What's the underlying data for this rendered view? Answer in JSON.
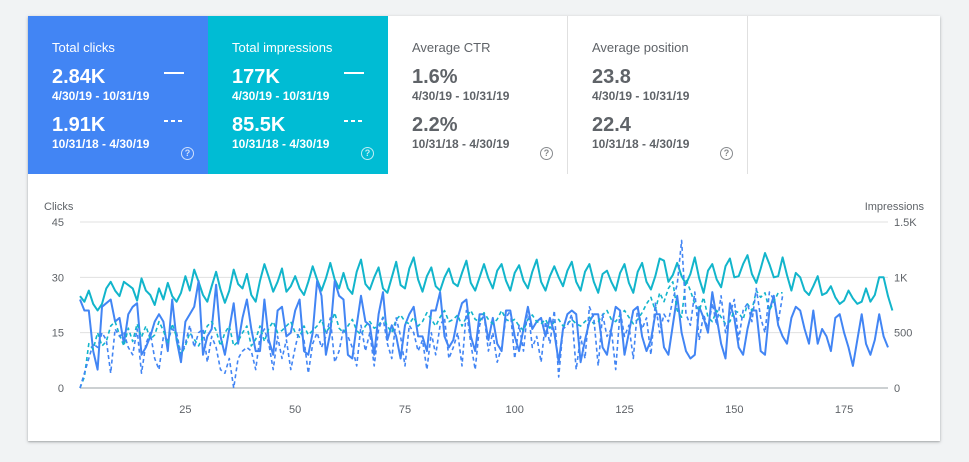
{
  "metrics": [
    {
      "title": "Total clicks",
      "current_value": "2.84K",
      "current_range": "4/30/19 - 10/31/19",
      "previous_value": "1.91K",
      "previous_range": "10/31/18 - 4/30/19",
      "bg": "#4285f4",
      "active": true
    },
    {
      "title": "Total impressions",
      "current_value": "177K",
      "current_range": "4/30/19 - 10/31/19",
      "previous_value": "85.5K",
      "previous_range": "10/31/18 - 4/30/19",
      "bg": "#00bcd4",
      "active": true
    },
    {
      "title": "Average CTR",
      "current_value": "1.6%",
      "current_range": "4/30/19 - 10/31/19",
      "previous_value": "2.2%",
      "previous_range": "10/31/18 - 4/30/19",
      "bg": "#ffffff",
      "active": false
    },
    {
      "title": "Average position",
      "current_value": "23.8",
      "current_range": "4/30/19 - 10/31/19",
      "previous_value": "22.4",
      "previous_range": "10/31/18 - 4/30/19",
      "bg": "#ffffff",
      "active": false
    }
  ],
  "help_glyph": "?",
  "chart_data": {
    "type": "line",
    "ylabel_left": "Clicks",
    "ylabel_right": "Impressions",
    "ylim_left": [
      0,
      45
    ],
    "ylim_right": [
      0,
      1500
    ],
    "yticks_left": [
      "0",
      "15",
      "30",
      "45"
    ],
    "yticks_right": [
      "0",
      "500",
      "1K",
      "1.5K"
    ],
    "xlim": [
      1,
      185
    ],
    "xticks": [
      25,
      50,
      75,
      100,
      125,
      150,
      175
    ],
    "grid": true,
    "series": [
      {
        "axis": "left",
        "style": "solid",
        "color": "#4285f4",
        "values": [
          24,
          21,
          21,
          10,
          5,
          22,
          23,
          24,
          18,
          19,
          12,
          20,
          22,
          23,
          9,
          11,
          14,
          18,
          20,
          18,
          10,
          24,
          13,
          7,
          18,
          20,
          22,
          29,
          9,
          14,
          16,
          28,
          14,
          9,
          16,
          23,
          12,
          19,
          24,
          16,
          10,
          10,
          24,
          13,
          9,
          21,
          22,
          14,
          15,
          21,
          24,
          10,
          9,
          15,
          29,
          25,
          9,
          15,
          29,
          25,
          24,
          9,
          8,
          17,
          25,
          18,
          17,
          9,
          20,
          26,
          13,
          17,
          14,
          8,
          17,
          20,
          22,
          14,
          14,
          10,
          21,
          21,
          26,
          14,
          11,
          13,
          19,
          23,
          24,
          14,
          10,
          20,
          20,
          13,
          19,
          12,
          10,
          21,
          21,
          14,
          10,
          16,
          22,
          16,
          18,
          19,
          14,
          19,
          15,
          7,
          16,
          20,
          21,
          20,
          7,
          13,
          18,
          20,
          20,
          11,
          9,
          16,
          22,
          21,
          9,
          15,
          21,
          22,
          14,
          10,
          13,
          20,
          20,
          11,
          9,
          17,
          25,
          15,
          10,
          8,
          9,
          22,
          19,
          15,
          26,
          19,
          12,
          8,
          23,
          19,
          11,
          9,
          16,
          21,
          21,
          10,
          9,
          21,
          25,
          17,
          14,
          12,
          19,
          22,
          21,
          16,
          12,
          21,
          12,
          16,
          14,
          10,
          19,
          20,
          15,
          11,
          6,
          13,
          20,
          12,
          9,
          13,
          20,
          14,
          11
        ]
      },
      {
        "axis": "right",
        "style": "solid",
        "color": "#12b5cb",
        "values": [
          830,
          780,
          880,
          760,
          700,
          760,
          900,
          960,
          880,
          830,
          960,
          930,
          900,
          790,
          990,
          880,
          840,
          750,
          900,
          800,
          950,
          830,
          780,
          860,
          1010,
          880,
          1070,
          960,
          840,
          780,
          920,
          1050,
          890,
          770,
          880,
          1070,
          940,
          900,
          1030,
          840,
          780,
          970,
          1120,
          1000,
          870,
          960,
          1080,
          870,
          920,
          1010,
          900,
          840,
          960,
          1100,
          980,
          880,
          990,
          1130,
          980,
          900,
          1040,
          900,
          850,
          1050,
          1160,
          940,
          890,
          1000,
          1090,
          900,
          860,
          1000,
          1140,
          930,
          900,
          1080,
          1180,
          980,
          870,
          1010,
          1090,
          920,
          880,
          1000,
          1080,
          950,
          920,
          1040,
          1150,
          950,
          880,
          1000,
          1120,
          990,
          900,
          1060,
          1120,
          970,
          880,
          1040,
          1110,
          970,
          900,
          1050,
          1160,
          960,
          880,
          1010,
          1100,
          1000,
          920,
          1060,
          1140,
          960,
          880,
          1050,
          1120,
          960,
          860,
          1030,
          1060,
          960,
          880,
          1040,
          1120,
          950,
          860,
          1050,
          1130,
          960,
          890,
          1010,
          1170,
          1150,
          960,
          1020,
          1130,
          1010,
          940,
          1030,
          1180,
          990,
          860,
          1060,
          1120,
          980,
          910,
          1100,
          1170,
          1000,
          1010,
          1120,
          1200,
          1030,
          950,
          1080,
          1220,
          1120,
          1000,
          1010,
          1180,
          1020,
          880,
          1040,
          1000,
          880,
          840,
          920,
          1010,
          840,
          860,
          920,
          820,
          760,
          790,
          880,
          810,
          760,
          780,
          900,
          780,
          840,
          1000,
          1000,
          830,
          700
        ]
      },
      {
        "axis": "left",
        "style": "dashed",
        "color": "#4285f4",
        "values": [
          0,
          4,
          8,
          12,
          11,
          15,
          13,
          4,
          16,
          14,
          15,
          11,
          9,
          16,
          4,
          12,
          15,
          8,
          5,
          14,
          13,
          16,
          15,
          9,
          12,
          17,
          11,
          15,
          16,
          7,
          14,
          11,
          5,
          4,
          8,
          0,
          8,
          10,
          11,
          10,
          5,
          14,
          16,
          12,
          5,
          14,
          8,
          13,
          5,
          11,
          16,
          13,
          4,
          12,
          15,
          11,
          14,
          19,
          7,
          10,
          16,
          14,
          11,
          6,
          17,
          10,
          15,
          6,
          16,
          19,
          12,
          8,
          19,
          14,
          6,
          17,
          15,
          10,
          13,
          5,
          15,
          9,
          17,
          19,
          8,
          11,
          15,
          6,
          21,
          12,
          5,
          17,
          20,
          10,
          15,
          7,
          11,
          19,
          21,
          8,
          17,
          10,
          22,
          11,
          14,
          7,
          18,
          12,
          21,
          3,
          16,
          17,
          20,
          5,
          14,
          8,
          22,
          19,
          6,
          20,
          14,
          16,
          5,
          21,
          14,
          17,
          8,
          22,
          16,
          19,
          9,
          23,
          15,
          20,
          18,
          24,
          28,
          40,
          20,
          17,
          26,
          13,
          20,
          16,
          23,
          17,
          25,
          15,
          20,
          24,
          13,
          21,
          23,
          18,
          27,
          19,
          15,
          26,
          24,
          18,
          25
        ]
      },
      {
        "axis": "right",
        "style": "dashed",
        "color": "#12b5cb",
        "values": [
          0,
          100,
          400,
          350,
          500,
          380,
          420,
          560,
          600,
          480,
          380,
          540,
          420,
          580,
          460,
          560,
          440,
          480,
          600,
          520,
          400,
          580,
          460,
          300,
          380,
          500,
          440,
          380,
          460,
          560,
          600,
          520,
          380,
          500,
          560,
          380,
          420,
          500,
          560,
          380,
          440,
          560,
          420,
          540,
          600,
          500,
          520,
          560,
          600,
          500,
          460,
          560,
          480,
          520,
          560,
          620,
          500,
          560,
          680,
          540,
          500,
          560,
          620,
          520,
          480,
          560,
          600,
          540,
          560,
          640,
          560,
          500,
          620,
          660,
          600,
          580,
          640,
          560,
          600,
          680,
          620,
          560,
          640,
          700,
          600,
          620,
          660,
          560,
          640,
          700,
          620,
          600,
          680,
          620,
          580,
          620,
          700,
          620,
          600,
          620,
          560,
          520,
          620,
          660,
          600,
          580,
          620,
          540,
          600,
          620,
          560,
          580,
          620,
          580,
          560,
          600,
          640,
          580,
          600,
          660,
          700,
          620,
          600,
          660,
          700,
          640,
          580,
          620,
          680,
          760,
          820,
          700,
          860,
          780,
          900,
          960,
          700,
          640,
          980,
          880,
          760,
          700,
          820,
          640,
          600,
          700,
          640,
          580,
          600,
          700,
          680,
          620,
          760,
          700,
          880,
          820,
          860,
          700,
          780,
          860,
          860
        ]
      }
    ]
  }
}
